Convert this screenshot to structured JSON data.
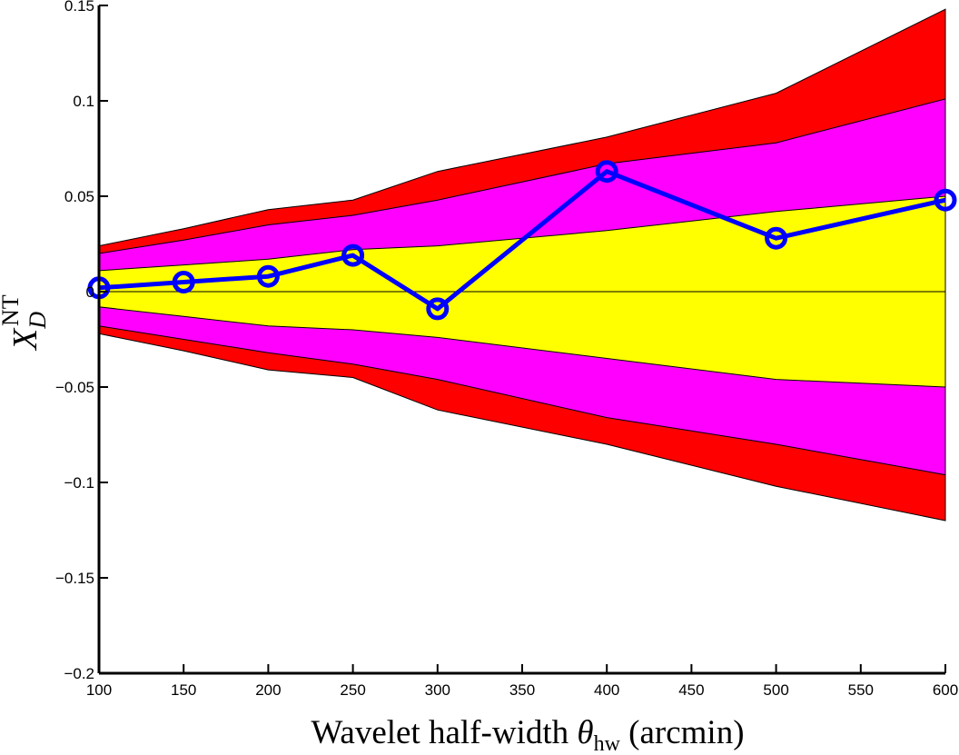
{
  "chart_data": {
    "type": "line",
    "xlabel": "Wavelet half-width θhw (arcmin)",
    "xlabel_parts": {
      "main": "Wavelet half-width ",
      "symbol": "θ",
      "sub": "hw",
      "unit": " (arcmin)"
    },
    "ylabel_parts": {
      "symbol": "X",
      "sub": "D",
      "sup": "NT"
    },
    "xlim": [
      100,
      600
    ],
    "ylim": [
      -0.2,
      0.15
    ],
    "x_ticks": [
      100,
      150,
      200,
      250,
      300,
      350,
      400,
      450,
      500,
      550,
      600
    ],
    "x_tick_labels": [
      "100",
      "150",
      "200",
      "250",
      "300",
      "350",
      "400",
      "450",
      "500",
      "550",
      "600"
    ],
    "y_ticks": [
      -0.2,
      -0.15,
      -0.1,
      -0.05,
      0,
      0.05,
      0.1,
      0.15
    ],
    "y_tick_labels": [
      "−0.2",
      "−0.15",
      "−0.1",
      "−0.05",
      "0",
      "0.05",
      "0.1",
      "0.15"
    ],
    "grid": false,
    "band_x": [
      100,
      150,
      200,
      250,
      300,
      400,
      500,
      600
    ],
    "bands": [
      {
        "color": "#ff0000",
        "upper": [
          0.024,
          0.033,
          0.043,
          0.048,
          0.063,
          0.081,
          0.104,
          0.148
        ],
        "lower": [
          -0.022,
          -0.031,
          -0.041,
          -0.045,
          -0.062,
          -0.08,
          -0.102,
          -0.12
        ]
      },
      {
        "color": "#ff00ff",
        "upper": [
          0.02,
          0.027,
          0.035,
          0.04,
          0.048,
          0.067,
          0.078,
          0.101
        ],
        "lower": [
          -0.018,
          -0.025,
          -0.032,
          -0.038,
          -0.046,
          -0.066,
          -0.08,
          -0.096
        ]
      },
      {
        "color": "#ffff00",
        "upper": [
          0.011,
          0.014,
          0.017,
          0.022,
          0.024,
          0.032,
          0.042,
          0.05
        ],
        "lower": [
          -0.008,
          -0.013,
          -0.018,
          -0.02,
          -0.024,
          -0.035,
          -0.046,
          -0.05
        ]
      }
    ],
    "series": [
      {
        "color": "#0000ff",
        "marker": "circle",
        "x": [
          100,
          150,
          200,
          250,
          300,
          400,
          500,
          600
        ],
        "y": [
          0.002,
          0.005,
          0.008,
          0.019,
          -0.009,
          0.063,
          0.028,
          0.048
        ]
      }
    ],
    "zero_line": true
  }
}
